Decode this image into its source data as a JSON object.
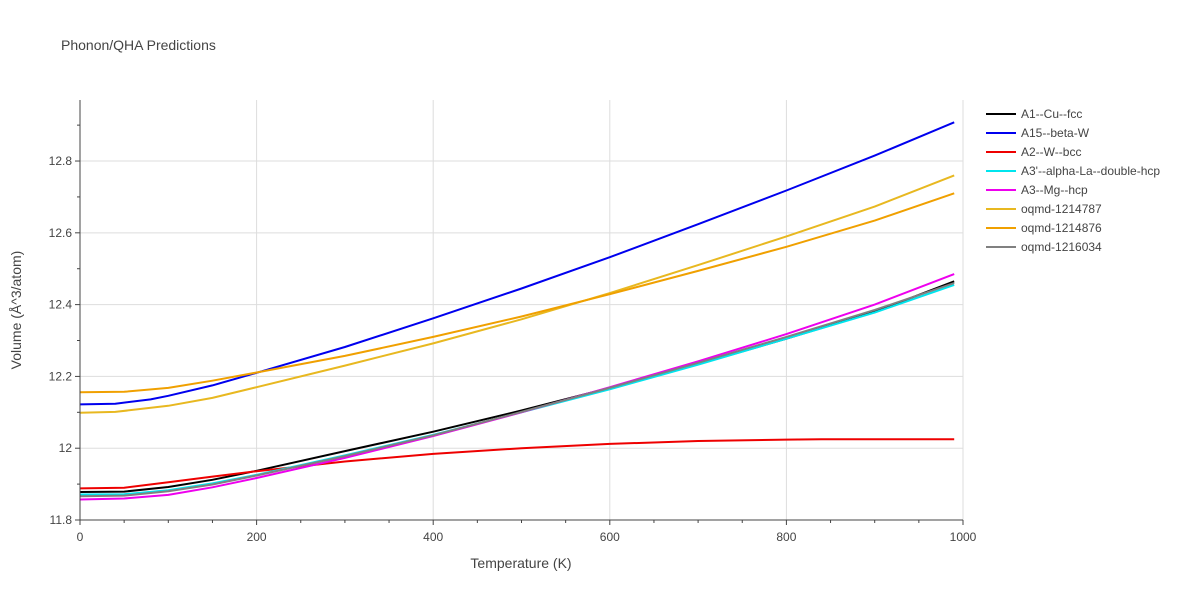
{
  "chart_data": {
    "type": "line",
    "title": "Phonon/QHA Predictions",
    "xlabel": "Temperature (K)",
    "ylabel": "Volume (Å^3/atom)",
    "xlim": [
      0,
      1000
    ],
    "ylim": [
      11.8,
      12.97
    ],
    "xticks": [
      0,
      200,
      400,
      600,
      800,
      1000
    ],
    "xtick_labels": [
      "0",
      "200",
      "400",
      "600",
      "800",
      "1000"
    ],
    "yticks": [
      11.8,
      12.0,
      12.2,
      12.4,
      12.6,
      12.8
    ],
    "ytick_labels": [
      "11.8",
      "12",
      "12.2",
      "12.4",
      "12.6",
      "12.8"
    ],
    "grid": true,
    "legend_position": "right",
    "series": [
      {
        "name": "A1--Cu--fcc",
        "color": "#000000",
        "x": [
          0,
          50,
          100,
          150,
          200,
          300,
          400,
          500,
          600,
          700,
          800,
          900,
          990
        ],
        "y": [
          11.878,
          11.879,
          11.892,
          11.912,
          11.937,
          11.992,
          12.046,
          12.105,
          12.168,
          12.234,
          12.305,
          12.38,
          12.465
        ]
      },
      {
        "name": "A15--beta-W",
        "color": "#0000ee",
        "x": [
          0,
          40,
          80,
          100,
          150,
          200,
          300,
          400,
          500,
          600,
          700,
          800,
          900,
          990
        ],
        "y": [
          12.122,
          12.124,
          12.136,
          12.146,
          12.175,
          12.21,
          12.282,
          12.362,
          12.445,
          12.532,
          12.624,
          12.718,
          12.815,
          12.908
        ]
      },
      {
        "name": "A2--W--bcc",
        "color": "#ee0000",
        "x": [
          0,
          50,
          100,
          150,
          200,
          300,
          400,
          500,
          600,
          700,
          800,
          840,
          900,
          990
        ],
        "y": [
          11.888,
          11.89,
          11.905,
          11.921,
          11.936,
          11.963,
          11.984,
          12.0,
          12.012,
          12.02,
          12.024,
          12.025,
          12.025,
          12.025
        ]
      },
      {
        "name": "A3'--alpha-La--double-hcp",
        "color": "#00e5ee",
        "x": [
          0,
          50,
          100,
          150,
          200,
          300,
          400,
          500,
          600,
          700,
          800,
          900,
          990
        ],
        "y": [
          11.871,
          11.872,
          11.883,
          11.902,
          11.926,
          11.98,
          12.037,
          12.1,
          12.164,
          12.233,
          12.305,
          12.378,
          12.455
        ]
      },
      {
        "name": "A3--Mg--hcp",
        "color": "#ee00ee",
        "x": [
          0,
          50,
          100,
          150,
          200,
          300,
          400,
          500,
          600,
          700,
          800,
          900,
          990
        ],
        "y": [
          11.857,
          11.86,
          11.87,
          11.891,
          11.917,
          11.973,
          12.034,
          12.1,
          12.17,
          12.242,
          12.318,
          12.4,
          12.485
        ]
      },
      {
        "name": "oqmd-1214787",
        "color": "#e8b820",
        "x": [
          0,
          40,
          100,
          150,
          200,
          300,
          400,
          500,
          600,
          700,
          800,
          900,
          990
        ],
        "y": [
          12.099,
          12.101,
          12.118,
          12.14,
          12.17,
          12.23,
          12.292,
          12.359,
          12.432,
          12.51,
          12.59,
          12.673,
          12.76
        ]
      },
      {
        "name": "oqmd-1214876",
        "color": "#f0a000",
        "x": [
          0,
          50,
          100,
          150,
          200,
          300,
          400,
          500,
          600,
          700,
          800,
          900,
          990
        ],
        "y": [
          12.156,
          12.157,
          12.168,
          12.188,
          12.211,
          12.257,
          12.31,
          12.367,
          12.429,
          12.494,
          12.561,
          12.634,
          12.71
        ]
      },
      {
        "name": "oqmd-1216034",
        "color": "#808080",
        "x": [
          0,
          50,
          100,
          150,
          200,
          300,
          400,
          500,
          600,
          700,
          800,
          900,
          990
        ],
        "y": [
          11.866,
          11.868,
          11.88,
          11.899,
          11.924,
          11.978,
          12.036,
          12.101,
          12.168,
          12.238,
          12.31,
          12.385,
          12.46
        ]
      }
    ]
  }
}
